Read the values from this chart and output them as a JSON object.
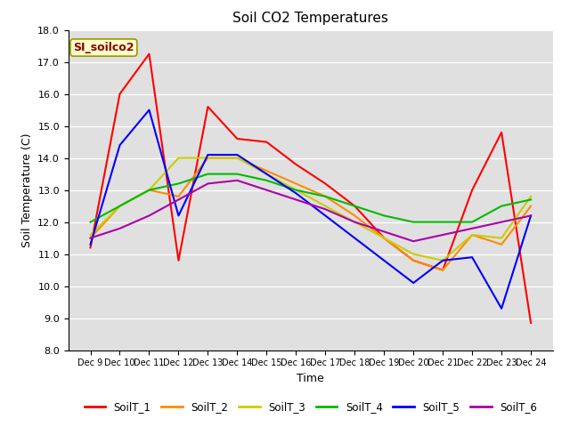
{
  "title": "Soil CO2 Temperatures",
  "xlabel": "Time",
  "ylabel": "Soil Temperature (C)",
  "ylim": [
    8.0,
    18.0
  ],
  "yticks": [
    8.0,
    9.0,
    10.0,
    11.0,
    12.0,
    13.0,
    14.0,
    15.0,
    16.0,
    17.0,
    18.0
  ],
  "annotation": "SI_soilco2",
  "annotation_color": "#8B0000",
  "annotation_bg": "#FFFFCC",
  "background_color": "#E0E0E0",
  "series_colors": {
    "SoilT_1": "#FF0000",
    "SoilT_2": "#FF8C00",
    "SoilT_3": "#CCCC00",
    "SoilT_4": "#00BB00",
    "SoilT_5": "#0000FF",
    "SoilT_6": "#AA00AA"
  },
  "x_labels": [
    "Dec 9",
    "Dec 10",
    "Dec 11",
    "Dec 12",
    "Dec 13",
    "Dec 14",
    "Dec 15",
    "Dec 16",
    "Dec 17",
    "Dec 18",
    "Dec 19",
    "Dec 20",
    "Dec 21",
    "Dec 22",
    "Dec 23",
    "Dec 24"
  ],
  "x_values": [
    0,
    1,
    2,
    3,
    4,
    5,
    6,
    7,
    8,
    9,
    10,
    11,
    12,
    13,
    14,
    15
  ],
  "SoilT_1": [
    11.2,
    16.0,
    17.25,
    10.8,
    15.6,
    14.6,
    14.5,
    13.8,
    13.2,
    12.5,
    11.5,
    10.8,
    10.5,
    13.0,
    14.8,
    8.85
  ],
  "SoilT_2": [
    11.5,
    12.5,
    13.0,
    12.8,
    14.0,
    14.0,
    13.6,
    13.2,
    12.8,
    12.2,
    11.5,
    10.8,
    10.5,
    11.6,
    11.3,
    12.5
  ],
  "SoilT_3": [
    11.6,
    12.5,
    13.0,
    14.0,
    14.0,
    14.0,
    13.5,
    13.0,
    12.5,
    12.0,
    11.5,
    11.0,
    10.8,
    11.6,
    11.5,
    12.8
  ],
  "SoilT_4": [
    12.0,
    12.5,
    13.0,
    13.2,
    13.5,
    13.5,
    13.3,
    13.0,
    12.8,
    12.5,
    12.2,
    12.0,
    12.0,
    12.0,
    12.5,
    12.7
  ],
  "SoilT_5": [
    11.3,
    14.4,
    15.5,
    12.2,
    14.1,
    14.1,
    13.5,
    12.9,
    12.2,
    11.5,
    10.8,
    10.1,
    10.8,
    10.9,
    9.3,
    12.2
  ],
  "SoilT_6": [
    11.5,
    11.8,
    12.2,
    12.7,
    13.2,
    13.3,
    13.0,
    12.7,
    12.4,
    12.0,
    11.7,
    11.4,
    11.6,
    11.8,
    12.0,
    12.2
  ]
}
